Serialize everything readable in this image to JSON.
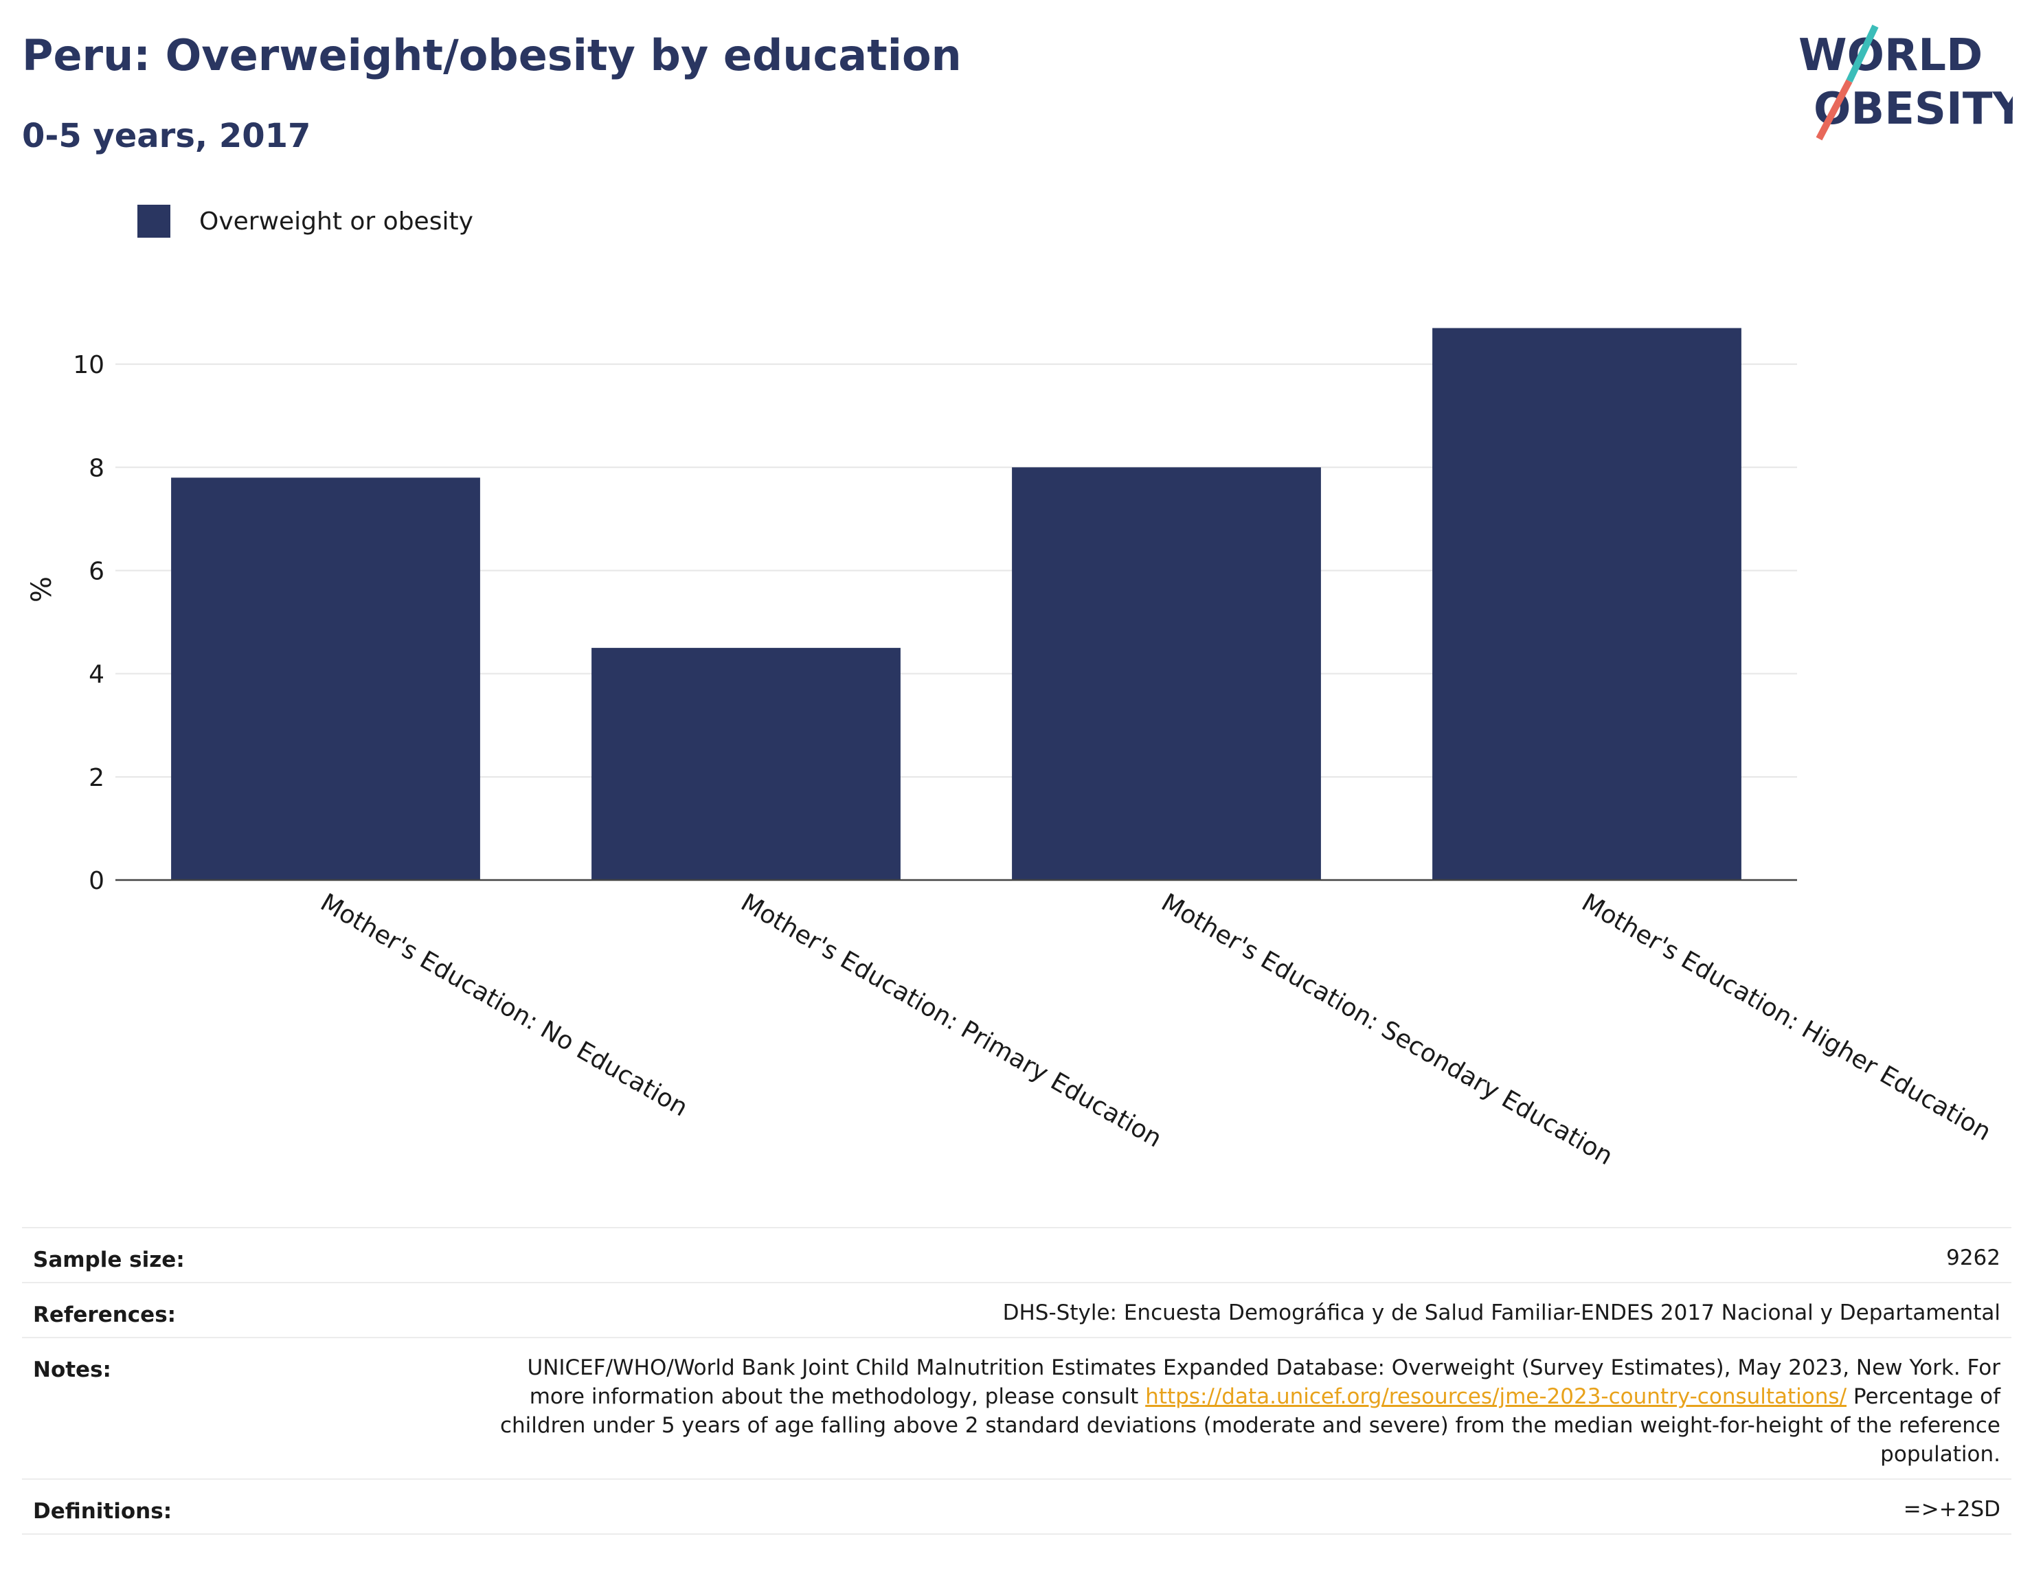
{
  "header": {
    "title": "Peru: Overweight/obesity by education",
    "subtitle": "0-5 years, 2017"
  },
  "logo": {
    "line1": "WORLD",
    "line2": "OBESITY",
    "colors": {
      "text": "#2a3661",
      "slash_top": "#3bbdb9",
      "slash_bottom": "#e8685a"
    }
  },
  "chart_data": {
    "type": "bar",
    "categories": [
      "Mother's Education: No Education",
      "Mother's Education: Primary Education",
      "Mother's Education: Secondary Education",
      "Mother's Education: Higher Education"
    ],
    "series": [
      {
        "name": "Overweight or obesity",
        "values": [
          7.8,
          4.5,
          8.0,
          10.7
        ],
        "color": "#2a3661"
      }
    ],
    "ylabel": "%",
    "xlabel": "",
    "ylim": [
      0,
      11
    ],
    "yticks": [
      0,
      2,
      4,
      6,
      8,
      10
    ],
    "grid": true,
    "legend_position": "top-left"
  },
  "info": {
    "sample_size": {
      "label": "Sample size:",
      "value": "9262"
    },
    "references": {
      "label": "References:",
      "value": "DHS-Style: Encuesta Demográfica y de Salud Familiar-ENDES 2017 Nacional y Departamental"
    },
    "notes": {
      "label": "Notes:",
      "text1": "UNICEF/WHO/World Bank Joint Child Malnutrition Estimates Expanded Database: Overweight (Survey Estimates), May 2023, New York. For more information about the methodology, please consult ",
      "link": "https://data.unicef.org/resources/jme-2023-country-consultations/",
      "text2": " Percentage of children under 5 years of age falling above 2 standard deviations (moderate and severe) from the median weight-for-height of the reference population."
    },
    "definitions": {
      "label": "Definitions:",
      "value": "=>+2SD"
    }
  }
}
